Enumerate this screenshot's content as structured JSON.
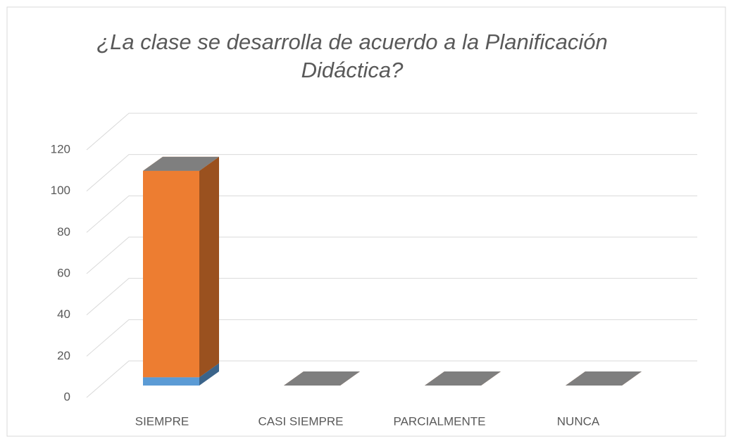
{
  "chart_data": {
    "type": "bar3d_stacked",
    "title": "¿La clase se desarrolla de acuerdo a la Planificación Didáctica?",
    "categories": [
      "SIEMPRE",
      "CASI SIEMPRE",
      "PARCIALMENTE",
      "NUNCA"
    ],
    "series": [
      {
        "color": "#5b9bd5",
        "values": [
          4,
          0,
          0,
          0
        ]
      },
      {
        "color": "#ed7d31",
        "values": [
          100,
          0,
          0,
          0
        ]
      },
      {
        "color": "#7f7f7f",
        "values": [
          0,
          0,
          0,
          0
        ]
      }
    ],
    "ylim": [
      0,
      120
    ],
    "yticks": [
      0,
      20,
      40,
      60,
      80,
      100,
      120
    ],
    "grid": true
  }
}
